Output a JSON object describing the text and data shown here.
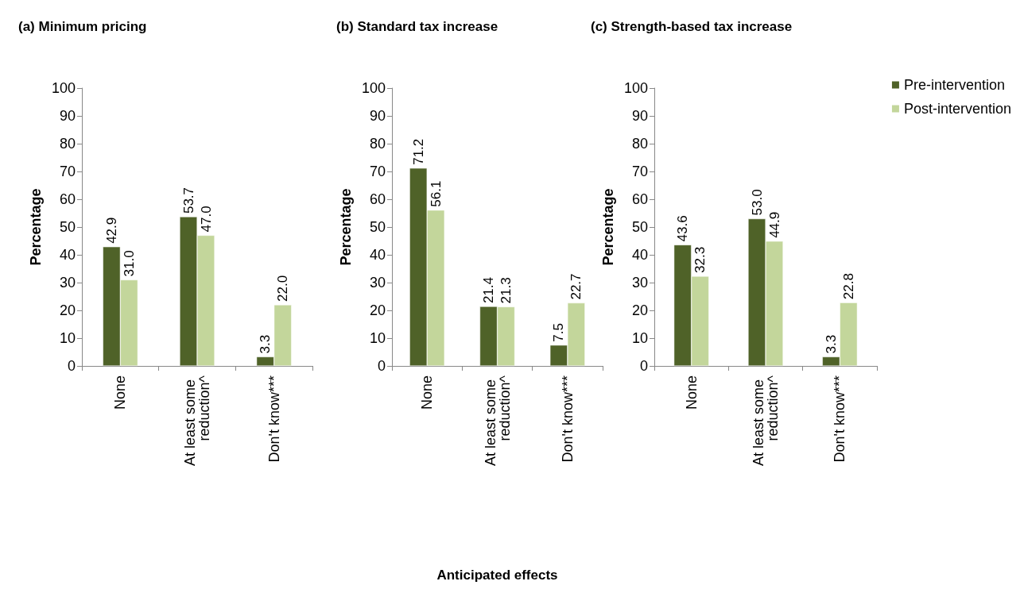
{
  "chart_data": [
    {
      "type": "bar",
      "title": "(a) Minimum pricing",
      "ylabel": "Percentage",
      "categories": [
        "None",
        "At least some reduction^",
        "Don't know***"
      ],
      "ylim": [
        0,
        100
      ],
      "yticks": [
        0,
        10,
        20,
        30,
        40,
        50,
        60,
        70,
        80,
        90,
        100
      ],
      "grid": false,
      "legend": false,
      "series": [
        {
          "color": "#4f6228",
          "values": [
            42.9,
            53.7,
            3.3
          ],
          "value_labels": [
            "42.9",
            "53.7",
            "3.3"
          ]
        },
        {
          "color": "#c3d69b",
          "values": [
            31.0,
            47.0,
            22.0
          ],
          "value_labels": [
            "31.0",
            "47.0",
            "22.0"
          ]
        }
      ]
    },
    {
      "type": "bar",
      "title": "(b) Standard tax increase",
      "ylabel": "Percentage",
      "xlabel": "Anticipated effects",
      "categories": [
        "None",
        "At least some reduction^",
        "Don't know***"
      ],
      "ylim": [
        0,
        100
      ],
      "yticks": [
        0,
        10,
        20,
        30,
        40,
        50,
        60,
        70,
        80,
        90,
        100
      ],
      "grid": false,
      "legend": false,
      "series": [
        {
          "color": "#4f6228",
          "values": [
            71.2,
            21.4,
            7.5
          ],
          "value_labels": [
            "71.2",
            "21.4",
            "7.5"
          ]
        },
        {
          "color": "#c3d69b",
          "values": [
            56.1,
            21.3,
            22.7
          ],
          "value_labels": [
            "56.1",
            "21.3",
            "22.7"
          ]
        }
      ]
    },
    {
      "type": "bar",
      "title": "(c) Strength-based tax increase",
      "ylabel": "Percentage",
      "categories": [
        "None",
        "At least some reduction^",
        "Don't know***"
      ],
      "ylim": [
        0,
        100
      ],
      "yticks": [
        0,
        10,
        20,
        30,
        40,
        50,
        60,
        70,
        80,
        90,
        100
      ],
      "grid": false,
      "legend": "top right",
      "series": [
        {
          "name": "Pre-intervention",
          "color": "#4f6228",
          "values": [
            43.6,
            53.0,
            3.3
          ],
          "value_labels": [
            "43.6",
            "53.0",
            "3.3"
          ]
        },
        {
          "name": "Post-intervention",
          "color": "#c3d69b",
          "values": [
            32.3,
            44.9,
            22.8
          ],
          "value_labels": [
            "32.3",
            "44.9",
            "22.8"
          ]
        }
      ]
    }
  ]
}
